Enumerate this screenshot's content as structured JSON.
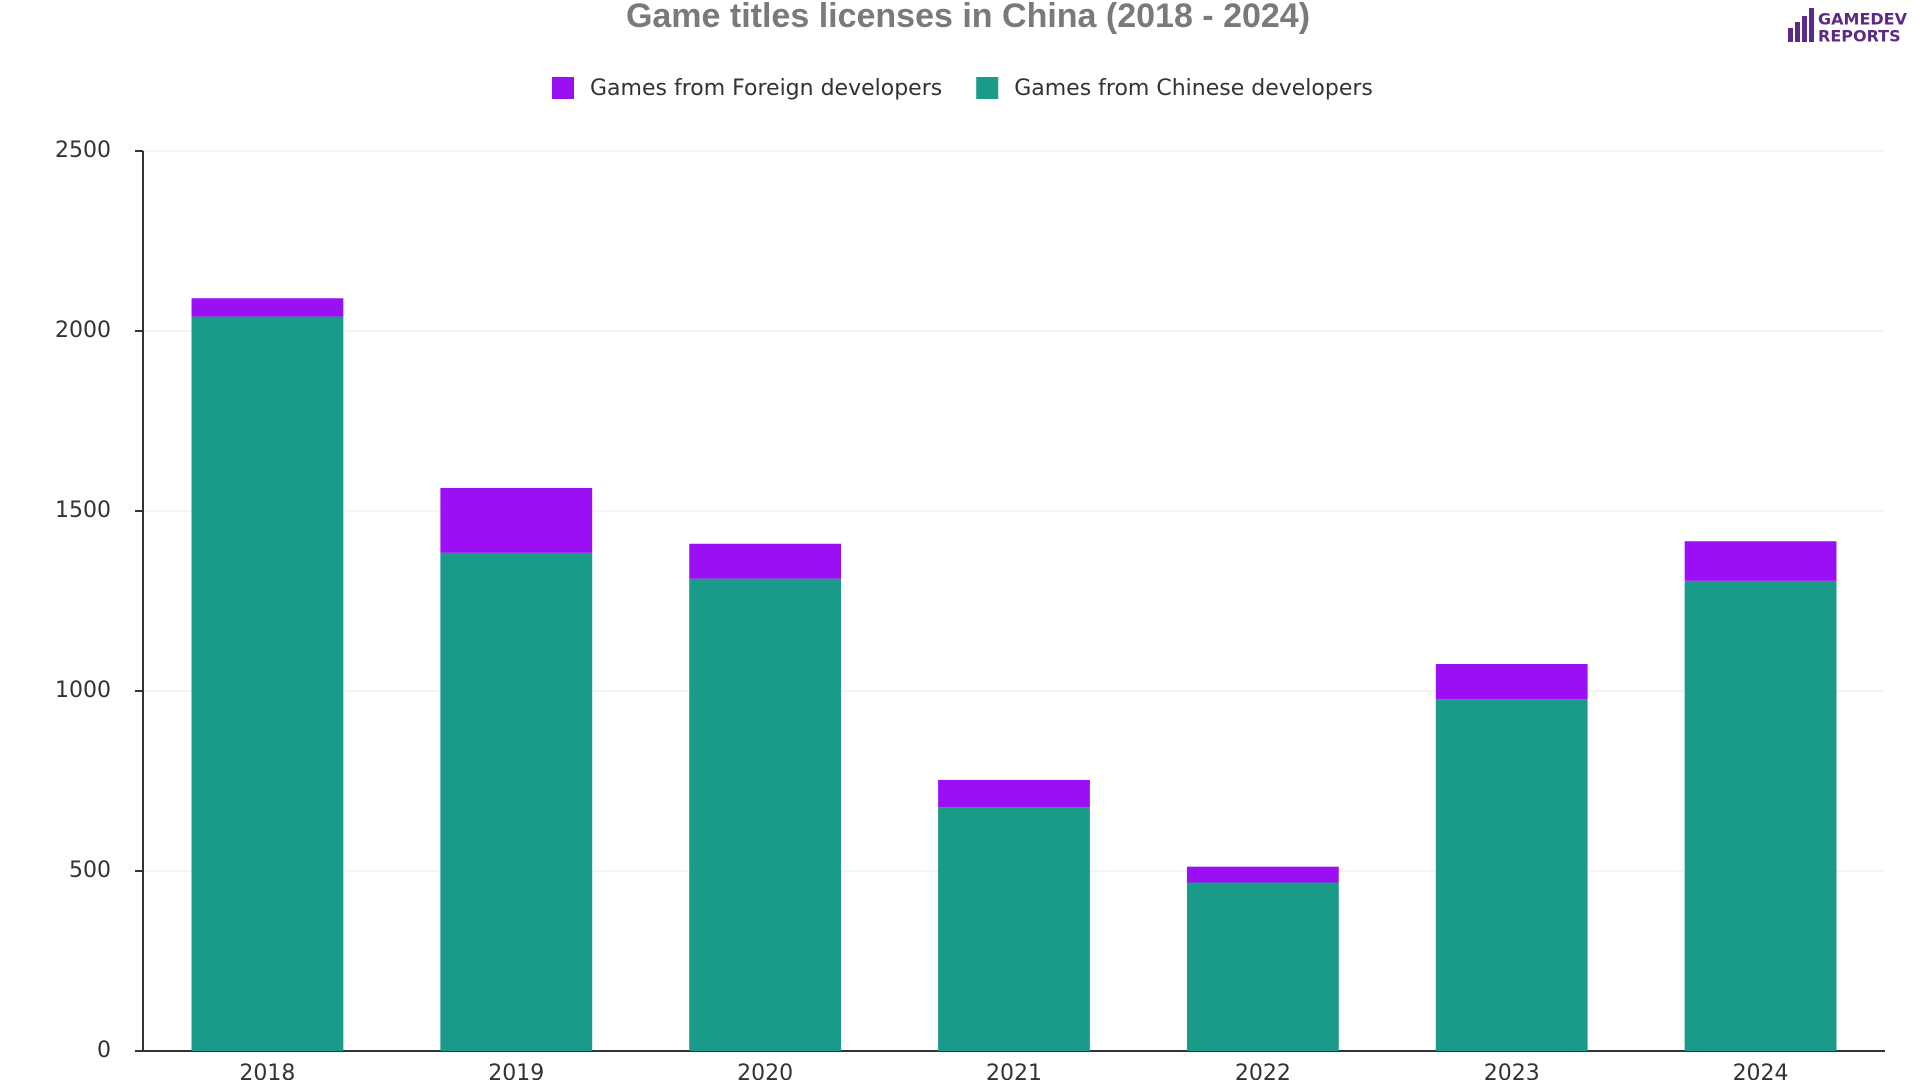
{
  "chart_data": {
    "type": "stacked_bar",
    "title": "Game titles licenses in China (2018 - 2024)",
    "logo_text": [
      "GAMEDEV",
      "REPORTS"
    ],
    "categories": [
      "2018",
      "2019",
      "2020",
      "2021",
      "2022",
      "2023",
      "2024"
    ],
    "series": [
      {
        "name": "Games from Foreign developers",
        "color": "#9b0ff5",
        "values": [
          51,
          180,
          97,
          76,
          44,
          98,
          110
        ]
      },
      {
        "name": "Games from Chinese developers",
        "color": "#1a9a88",
        "values": [
          2040,
          1384,
          1312,
          677,
          468,
          977,
          1306
        ]
      }
    ],
    "ylim": [
      0,
      2500
    ],
    "yticks": [
      0,
      500,
      1000,
      1500,
      2000,
      2500
    ],
    "grid": true,
    "legend": "top"
  }
}
